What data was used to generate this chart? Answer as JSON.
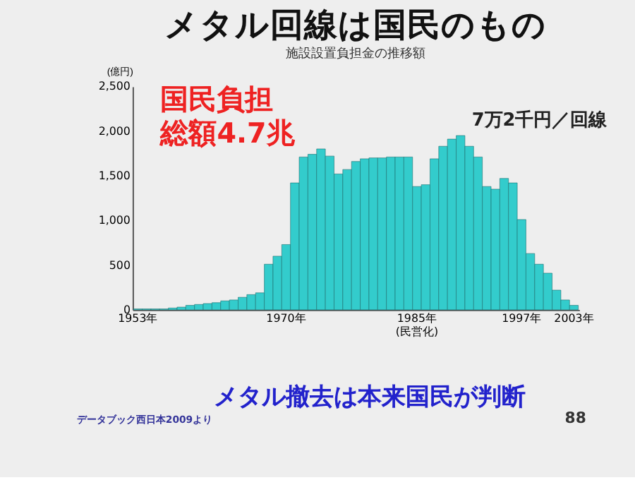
{
  "chart_data": {
    "type": "bar",
    "title": "メタル回線は国民のもの",
    "subtitle": "施設設置負担金の推移額",
    "ylabel": "(億円)",
    "categories": [
      "1953年",
      null,
      null,
      null,
      null,
      null,
      null,
      null,
      null,
      null,
      null,
      null,
      null,
      null,
      null,
      null,
      null,
      "1970年",
      null,
      null,
      null,
      null,
      null,
      null,
      null,
      null,
      null,
      null,
      null,
      null,
      null,
      null,
      "1985年\n(民営化)",
      null,
      null,
      null,
      null,
      null,
      null,
      null,
      null,
      null,
      null,
      null,
      "1997年",
      null,
      null,
      null,
      null,
      null,
      "2003年"
    ],
    "values": [
      10,
      10,
      10,
      10,
      20,
      30,
      50,
      60,
      70,
      80,
      100,
      110,
      140,
      170,
      190,
      510,
      600,
      730,
      1420,
      1710,
      1740,
      1800,
      1720,
      1520,
      1570,
      1660,
      1690,
      1700,
      1700,
      1710,
      1710,
      1710,
      1380,
      1400,
      1690,
      1830,
      1910,
      1950,
      1830,
      1710,
      1380,
      1350,
      1470,
      1420,
      1010,
      630,
      510,
      410,
      220,
      110,
      50
    ],
    "color": "#33cccc",
    "ylim": [
      0,
      2500
    ],
    "yticks": [
      0,
      500,
      {
        "value": 1000,
        "label": "1,000"
      },
      {
        "value": 1500,
        "label": "1,500"
      },
      {
        "value": 2000,
        "label": "2,000"
      },
      {
        "value": 2500,
        "label": "2,500"
      }
    ],
    "grid": false,
    "annotations": [
      "国民負担",
      "総額4.7兆",
      "7万2千円／回線",
      "メタル撤去は本来国民が判断",
      "データブック西日本2009より",
      "88"
    ]
  }
}
